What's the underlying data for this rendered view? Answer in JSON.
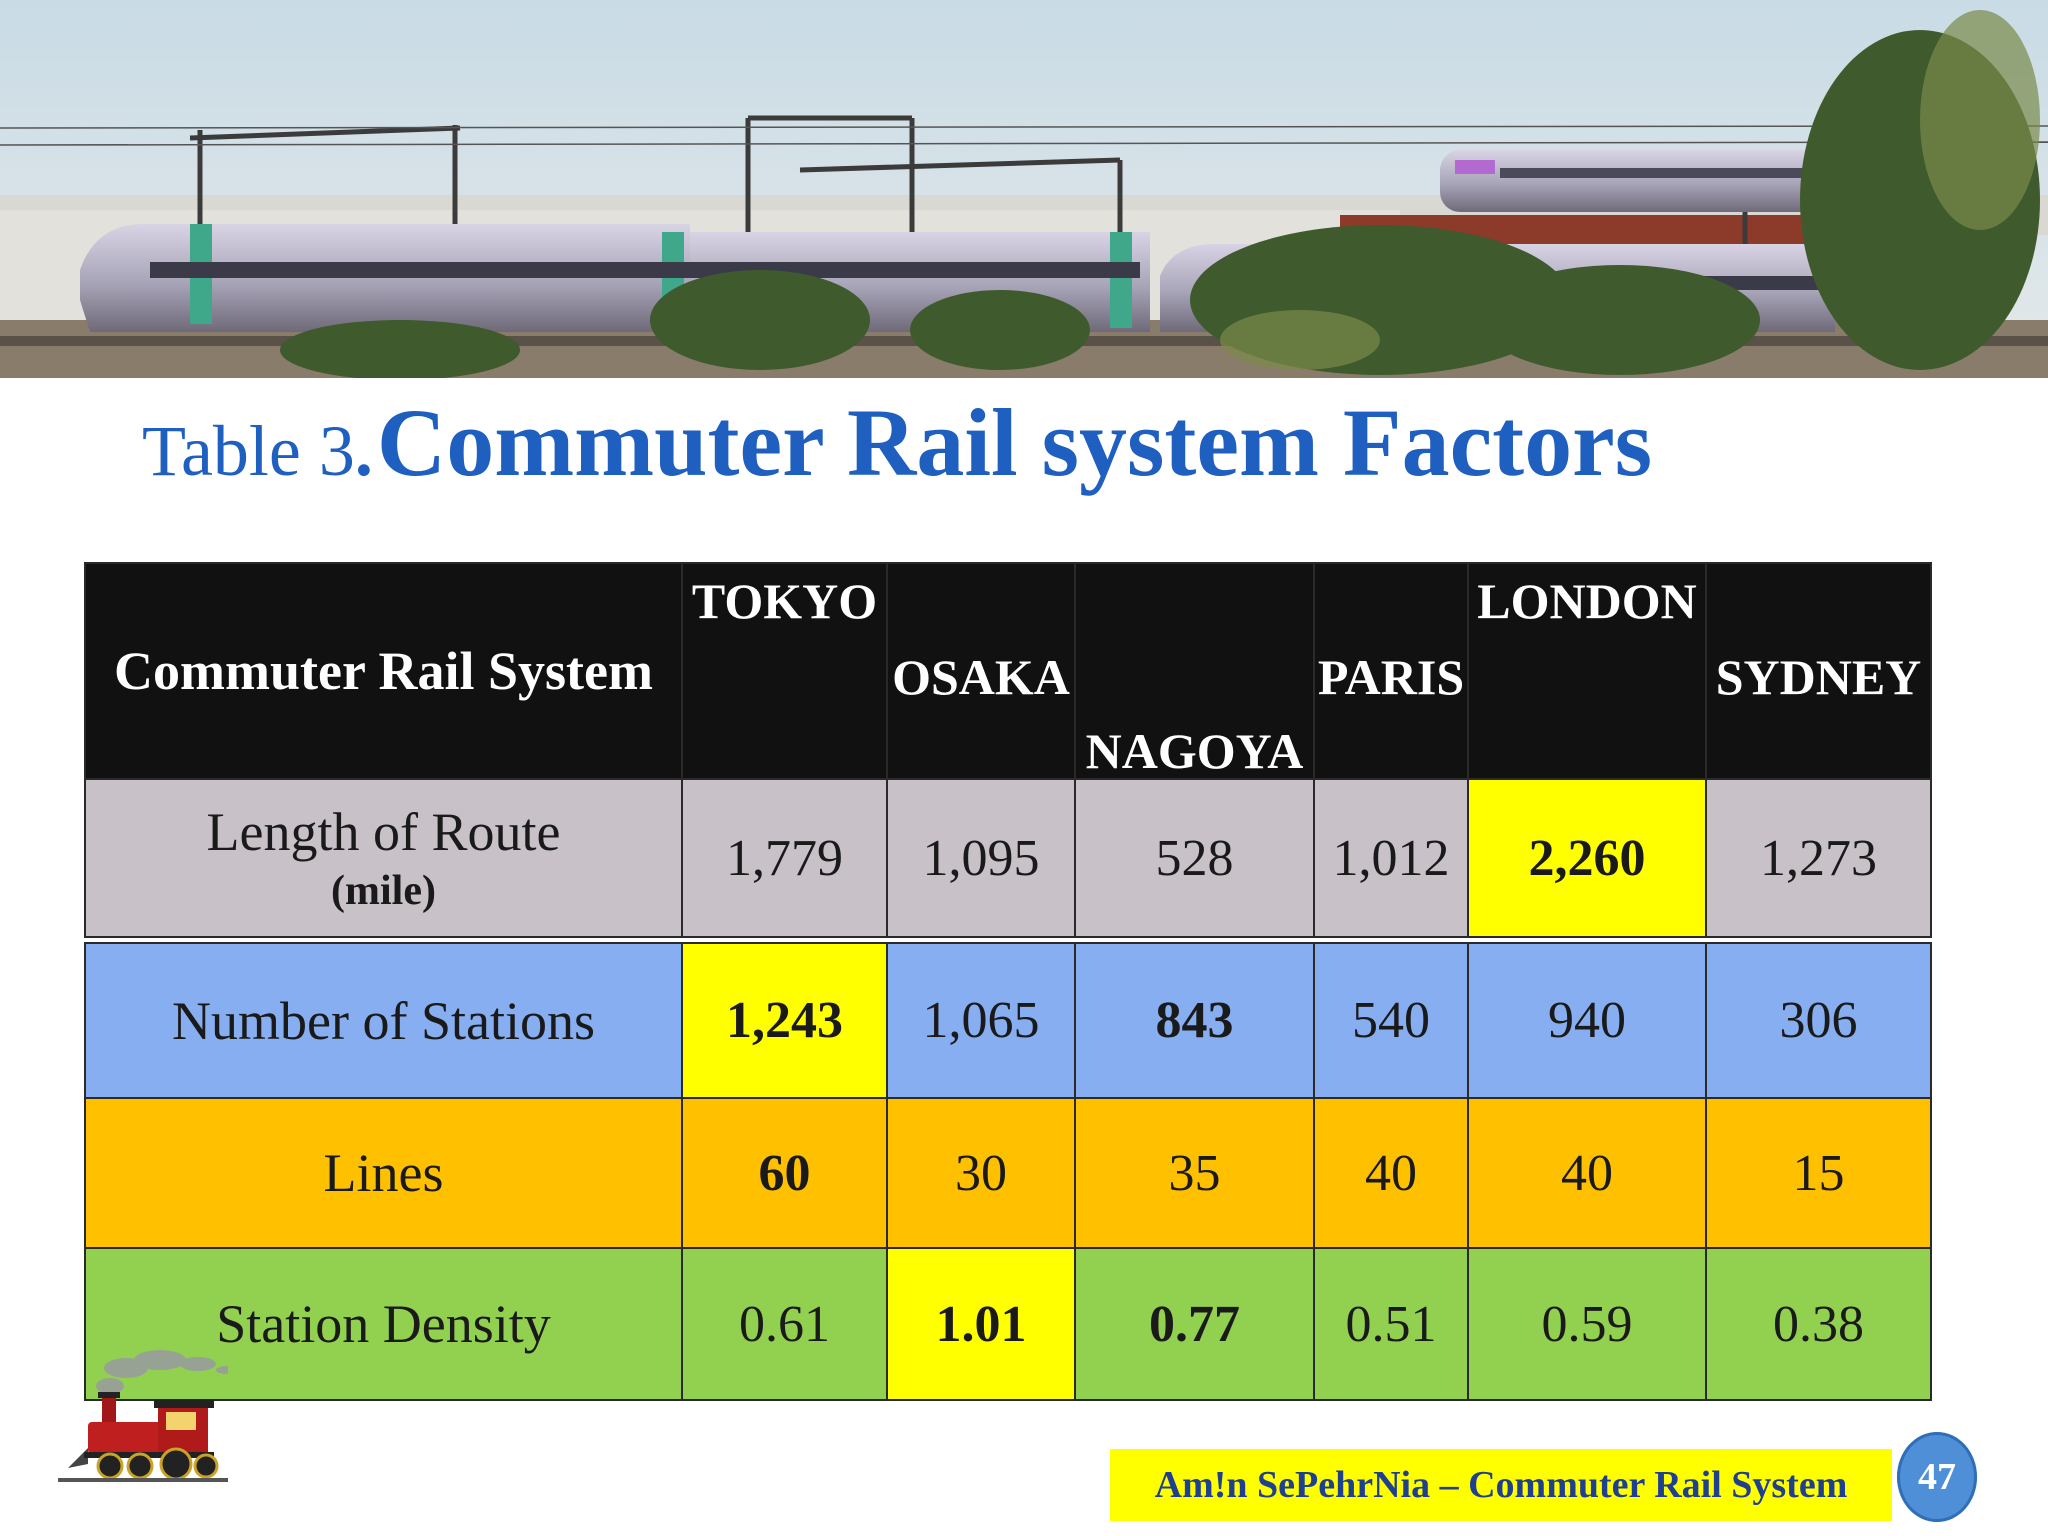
{
  "title": {
    "prefix": "Table 3",
    "separator": ".",
    "main": "Commuter Rail system Factors"
  },
  "table": {
    "header_label": "Commuter Rail System",
    "cities": [
      "TOKYO",
      "OSAKA",
      "NAGOYA",
      "PARIS",
      "LONDON",
      "SYDNEY"
    ],
    "rows": [
      {
        "label": "Length of Route",
        "sublabel": "(mile)",
        "values": [
          "1,779",
          "1,095",
          "528",
          "1,012",
          "2,260",
          "1,273"
        ]
      },
      {
        "label": "Number of Stations",
        "values": [
          "1,243",
          "1,065",
          "843",
          "540",
          "940",
          "306"
        ]
      },
      {
        "label": "Lines",
        "values": [
          "60",
          "30",
          "35",
          "40",
          "40",
          "15"
        ]
      },
      {
        "label": "Station Density",
        "values": [
          "0.61",
          "1.01",
          "0.77",
          "0.51",
          "0.59",
          "0.38"
        ]
      }
    ]
  },
  "footer": {
    "credit": "Am!n SePehrNia – Commuter Rail System",
    "page_number": "47"
  },
  "colors": {
    "title_blue": "#1f5fbf",
    "header_bg": "#111111",
    "length_row": "#c8c2c8",
    "stations_row": "#86aef0",
    "lines_row": "#ffc000",
    "density_row": "#92d050",
    "highlight": "#ffff00"
  },
  "images": {
    "banner": "photo of commuter trains passing on overhead-wired tracks",
    "clipart": "red steam locomotive clipart"
  }
}
